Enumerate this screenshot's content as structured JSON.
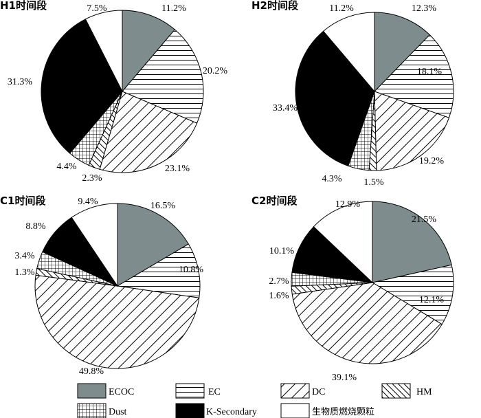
{
  "colors": {
    "ECOC": "#7f8c8d",
    "K-Secondary": "#000000",
    "biomass": "#ffffff",
    "outline": "#000000"
  },
  "categories": [
    "ECOC",
    "EC",
    "DC",
    "HM",
    "Dust",
    "K-Secondary",
    "生物质燃烧颗粒"
  ],
  "legend": {
    "items": [
      {
        "label": "ECOC",
        "pattern": "solid-gray"
      },
      {
        "label": "EC",
        "pattern": "horizontal-lines"
      },
      {
        "label": "DC",
        "pattern": "forward-diagonal"
      },
      {
        "label": "HM",
        "pattern": "backward-diagonal"
      },
      {
        "label": "Dust",
        "pattern": "grid"
      },
      {
        "label": "K-Secondary",
        "pattern": "solid-black"
      },
      {
        "label": "生物质燃烧颗粒",
        "pattern": "solid-white"
      }
    ]
  },
  "chart_data": [
    {
      "type": "pie",
      "title": "H1时间段",
      "categories": [
        "ECOC",
        "EC",
        "DC",
        "HM",
        "Dust",
        "K-Secondary",
        "生物质燃烧颗粒"
      ],
      "values": [
        11.2,
        20.2,
        23.1,
        2.3,
        4.4,
        31.3,
        7.5
      ],
      "labels": [
        "11.2%",
        "20.2%",
        "23.1%",
        "2.3%",
        "4.4%",
        "31.3%",
        "7.5%"
      ]
    },
    {
      "type": "pie",
      "title": "H2时间段",
      "categories": [
        "ECOC",
        "EC",
        "DC",
        "HM",
        "Dust",
        "K-Secondary",
        "生物质燃烧颗粒"
      ],
      "values": [
        12.3,
        18.1,
        19.2,
        1.5,
        4.3,
        33.4,
        11.2
      ],
      "labels": [
        "12.3%",
        "18.1%",
        "19.2%",
        "1.5%",
        "4.3%",
        "33.4%",
        "11.2%"
      ]
    },
    {
      "type": "pie",
      "title": "C1时间段",
      "categories": [
        "ECOC",
        "EC",
        "DC",
        "HM",
        "Dust",
        "K-Secondary",
        "生物质燃烧颗粒"
      ],
      "values": [
        16.5,
        10.8,
        49.8,
        1.3,
        3.4,
        8.8,
        9.4
      ],
      "labels": [
        "16.5%",
        "10.8%",
        "49.8%",
        "1.3%",
        "3.4%",
        "8.8%",
        "9.4%"
      ]
    },
    {
      "type": "pie",
      "title": "C2时间段",
      "categories": [
        "ECOC",
        "EC",
        "DC",
        "HM",
        "Dust",
        "K-Secondary",
        "生物质燃烧颗粒"
      ],
      "values": [
        21.5,
        12.1,
        39.1,
        1.6,
        2.7,
        10.1,
        12.9
      ],
      "labels": [
        "21.5%",
        "12.1%",
        "39.1%",
        "1.6%",
        "2.7%",
        "10.1%",
        "12.9%"
      ]
    }
  ]
}
